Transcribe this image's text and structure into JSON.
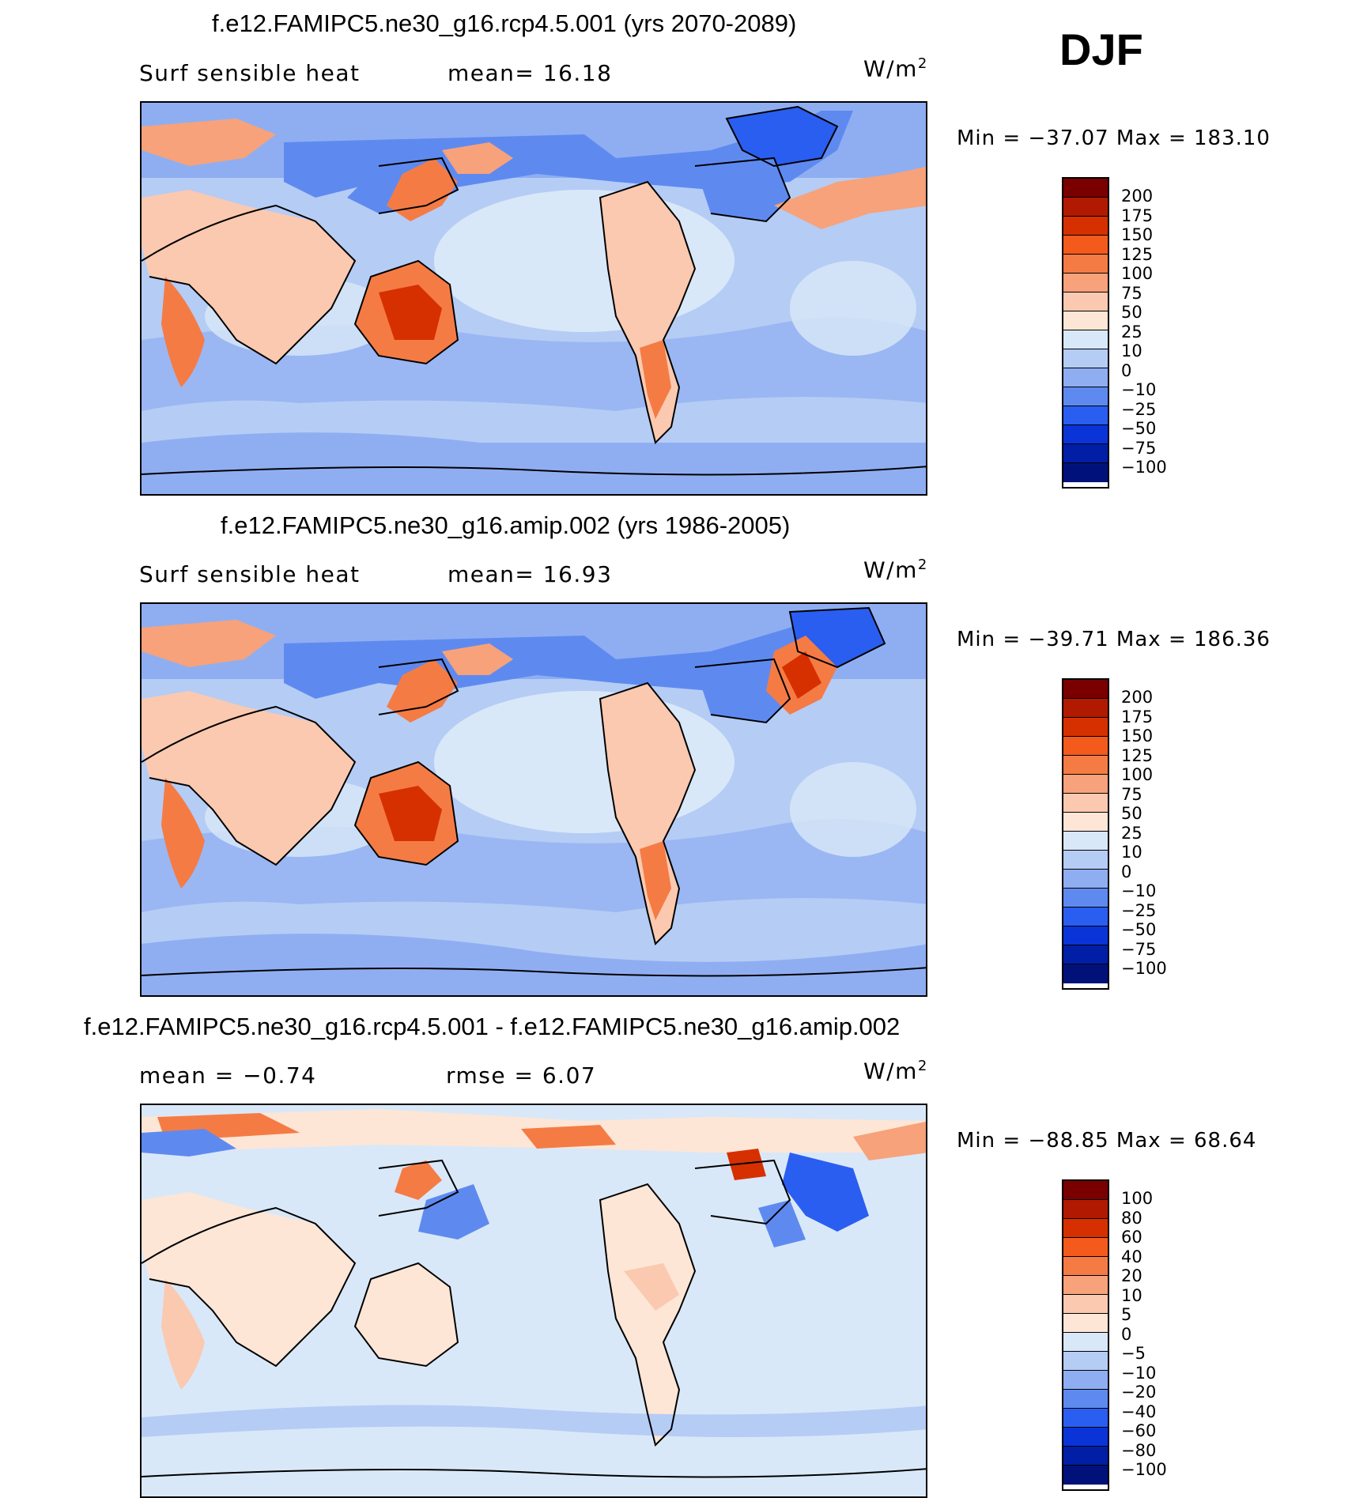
{
  "season": "DJF",
  "panels": [
    {
      "title": "f.e12.FAMIPC5.ne30_g16.rcp4.5.001 (yrs 2070-2089)",
      "variable": "Surf sensible heat",
      "stat_left": "",
      "stat_right": "mean=   16.18",
      "units": "W/m",
      "units_exp": "2",
      "min_max": "Min  =  −37.07  Max  =  183.10",
      "colorbar_labels": [
        "200",
        "175",
        "150",
        "125",
        "100",
        "75",
        "50",
        "25",
        "10",
        "0",
        "−10",
        "−25",
        "−50",
        "−75",
        "−100"
      ],
      "colorbar_colors": [
        "#7a0000",
        "#b11a00",
        "#d63000",
        "#f45a1c",
        "#f57b45",
        "#f7a27a",
        "#fac9b0",
        "#fde6d6",
        "#d9e8f8",
        "#b5ccf5",
        "#8faef2",
        "#5e8af0",
        "#2a5ef0",
        "#0a33d8",
        "#001fa6",
        "#00127a"
      ]
    },
    {
      "title": "f.e12.FAMIPC5.ne30_g16.amip.002 (yrs 1986-2005)",
      "variable": "Surf sensible heat",
      "stat_left": "",
      "stat_right": "mean=   16.93",
      "units": "W/m",
      "units_exp": "2",
      "min_max": "Min  =  −39.71  Max  =  186.36",
      "colorbar_labels": [
        "200",
        "175",
        "150",
        "125",
        "100",
        "75",
        "50",
        "25",
        "10",
        "0",
        "−10",
        "−25",
        "−50",
        "−75",
        "−100"
      ],
      "colorbar_colors": [
        "#7a0000",
        "#b11a00",
        "#d63000",
        "#f45a1c",
        "#f57b45",
        "#f7a27a",
        "#fac9b0",
        "#fde6d6",
        "#d9e8f8",
        "#b5ccf5",
        "#8faef2",
        "#5e8af0",
        "#2a5ef0",
        "#0a33d8",
        "#001fa6",
        "#00127a"
      ]
    },
    {
      "title": "f.e12.FAMIPC5.ne30_g16.rcp4.5.001 - f.e12.FAMIPC5.ne30_g16.amip.002",
      "variable": "",
      "stat_left": "mean  =    −0.74",
      "stat_right": "rmse  =     6.07",
      "units": "W/m",
      "units_exp": "2",
      "min_max": "Min  =  −88.85  Max  =    68.64",
      "colorbar_labels": [
        "100",
        "80",
        "60",
        "40",
        "20",
        "10",
        "5",
        "0",
        "−5",
        "−10",
        "−20",
        "−40",
        "−60",
        "−80",
        "−100"
      ],
      "colorbar_colors": [
        "#7a0000",
        "#b11a00",
        "#d63000",
        "#f45a1c",
        "#f57b45",
        "#f7a27a",
        "#fac9b0",
        "#fde6d6",
        "#d9e8f8",
        "#b5ccf5",
        "#8faef2",
        "#5e8af0",
        "#2a5ef0",
        "#0a33d8",
        "#001fa6",
        "#00127a"
      ]
    }
  ],
  "map_colors": {
    "ocean_warm": "#d9e8f8",
    "ocean_mid": "#b5ccf5",
    "ocean_cool": "#8faef2",
    "land_warm": "#fac9b0",
    "land_hot": "#f57b45",
    "land_veryhot": "#d63000",
    "polar_cold": "#2a5ef0",
    "polar_cool": "#5e8af0",
    "diff_zero_pos": "#fde6d6",
    "diff_neg": "#d9e8f8",
    "coast": "#000000"
  }
}
